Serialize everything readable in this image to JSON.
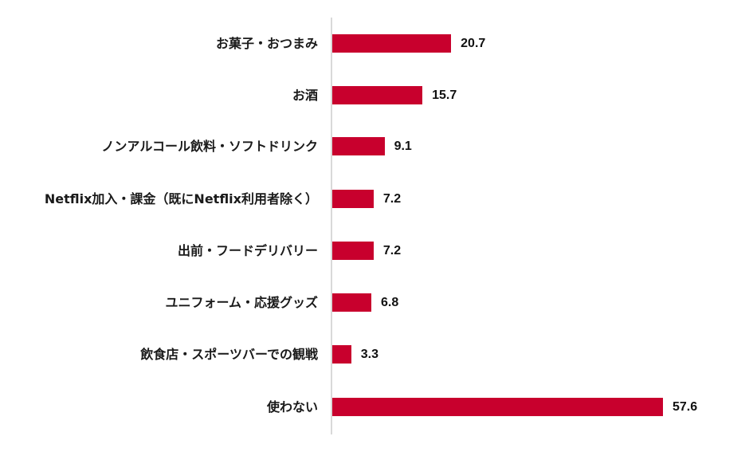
{
  "chart_data": {
    "type": "bar",
    "orientation": "horizontal",
    "title": "",
    "xlabel": "",
    "ylabel": "",
    "categories": [
      "お菓子・おつまみ",
      "お酒",
      "ノンアルコール飲料・ソフトドリンク",
      "Netflix加入・課金（既にNetflix利用者除く）",
      "出前・フードデリバリー",
      "ユニフォーム・応援グッズ",
      "飲食店・スポーツバーでの観戦",
      "使わない"
    ],
    "values": [
      20.7,
      15.7,
      9.1,
      7.2,
      7.2,
      6.8,
      3.3,
      57.6
    ],
    "value_labels": [
      "20.7",
      "15.7",
      "9.1",
      "7.2",
      "7.2",
      "6.8",
      "3.3",
      "57.6"
    ],
    "xlim": [
      0,
      60
    ],
    "grid": false,
    "legend": "none",
    "bar_color": "#c8002d"
  }
}
